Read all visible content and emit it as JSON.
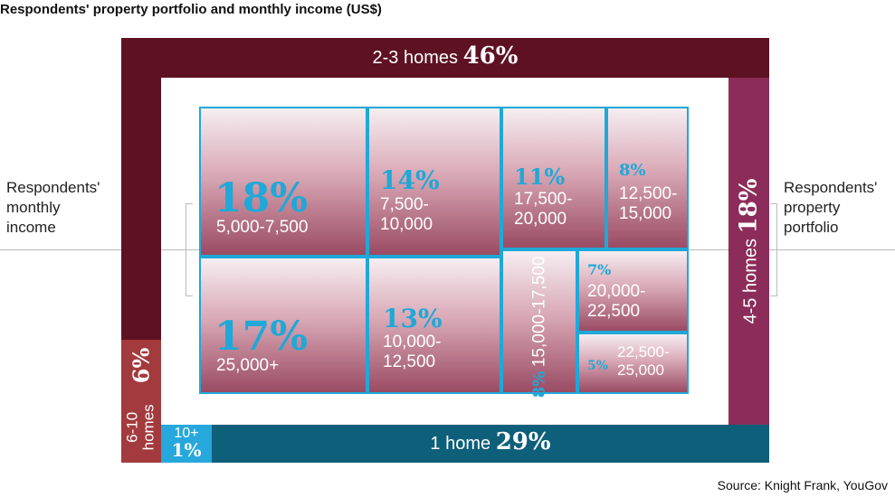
{
  "title": "Respondents' property portfolio and monthly income (US$)",
  "source": "Source: Knight Frank, YouGov",
  "left_label": [
    "Respondents'",
    "monthly",
    "income"
  ],
  "right_label": [
    "Respondents'",
    "property",
    "portfolio"
  ],
  "colors": {
    "homes_2_3": "#5e1123",
    "homes_4_5": "#8c2c5a",
    "homes_6_10": "#a33a3e",
    "homes_10_plus": "#27a8dc",
    "homes_1": "#0e5f7a",
    "cell_border": "#1fa8d8",
    "cell_pct": "#1fa8d8"
  },
  "frame": {
    "top": {
      "label": "2-3 homes",
      "value": "46%"
    },
    "right": {
      "label": "4-5 homes",
      "value": "18%"
    },
    "left_small": {
      "label_a": "6-10",
      "label_b": "homes",
      "value": "6%"
    },
    "corner": {
      "label": "10+",
      "value": "1%"
    },
    "bottom": {
      "label": "1 home",
      "value": "29%"
    }
  },
  "chart_data": [
    {
      "type": "treemap",
      "title": "Respondents' property portfolio",
      "categories": [
        "2-3 homes",
        "1 home",
        "4-5 homes",
        "6-10 homes",
        "10+"
      ],
      "values": [
        46,
        29,
        18,
        6,
        1
      ],
      "unit": "%"
    },
    {
      "type": "treemap",
      "title": "Respondents' monthly income",
      "categories": [
        "5,000-7,500",
        "25,000+",
        "7,500-10,000",
        "10,000-12,500",
        "17,500-20,000",
        "12,500-15,000",
        "15,000-17,500",
        "20,000-22,500",
        "22,500-25,000"
      ],
      "values": [
        18,
        17,
        14,
        13,
        11,
        8,
        8,
        7,
        5
      ],
      "unit": "%"
    }
  ],
  "cells": [
    {
      "pct": "18%",
      "range": "5,000-7,500"
    },
    {
      "pct": "17%",
      "range": "25,000+"
    },
    {
      "pct": "14%",
      "range_a": "7,500-",
      "range_b": "10,000"
    },
    {
      "pct": "13%",
      "range_a": "10,000-",
      "range_b": "12,500"
    },
    {
      "pct": "11%",
      "range_a": "17,500-",
      "range_b": "20,000"
    },
    {
      "pct": "8%",
      "range_a": "12,500-",
      "range_b": "15,000"
    },
    {
      "pct": "8%",
      "range": "15,000-17,500"
    },
    {
      "pct": "7%",
      "range_a": "20,000-",
      "range_b": "22,500"
    },
    {
      "pct": "5%",
      "range_a": "22,500-",
      "range_b": "25,000"
    }
  ]
}
